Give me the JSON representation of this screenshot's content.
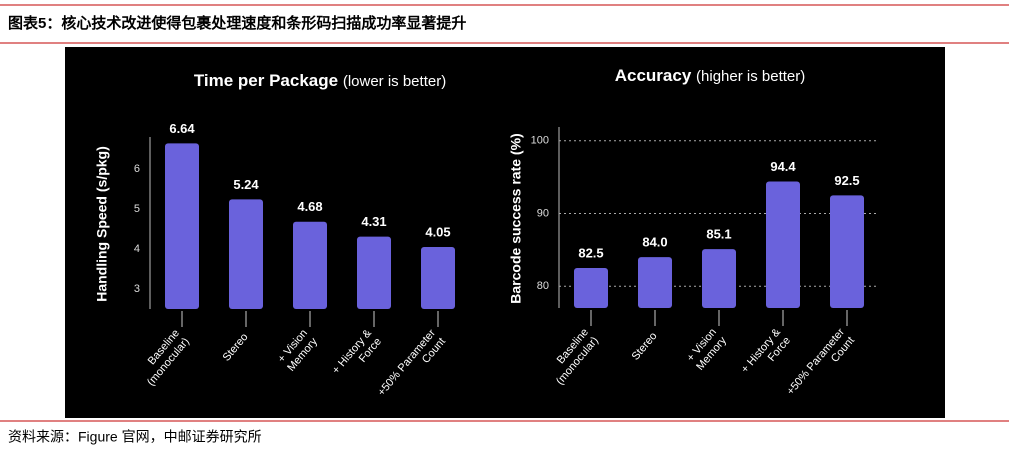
{
  "header": {
    "title": "图表5：核心技术改进使得包裹处理速度和条形码扫描成功率显著提升"
  },
  "source": "资料来源：Figure 官网，中邮证券研究所",
  "chart_data": [
    {
      "type": "bar",
      "title": "Time per Package",
      "subtitle": "(lower is better)",
      "y_label": "Handling Speed (s/pkg)",
      "categories": [
        [
          "Baseline",
          "(monocular)"
        ],
        [
          "Stereo"
        ],
        [
          "+ Vision",
          "Memory"
        ],
        [
          "+ History &",
          "Force"
        ],
        [
          "+50% Parameter",
          "Count"
        ]
      ],
      "values": [
        6.64,
        5.24,
        4.68,
        4.31,
        4.05
      ],
      "color": "#6a62dc",
      "ylim": [
        2.5,
        7
      ],
      "yticks": [
        3,
        4,
        5,
        6
      ],
      "grid": false
    },
    {
      "type": "bar",
      "title": "Accuracy",
      "subtitle": "(higher is better)",
      "y_label": "Barcode success rate (%)",
      "categories": [
        [
          "Baseline",
          "(monocular)"
        ],
        [
          "Stereo"
        ],
        [
          "+ Vision",
          "Memory"
        ],
        [
          "+ History &",
          "Force"
        ],
        [
          "+50% Parameter",
          "Count"
        ]
      ],
      "values": [
        82.5,
        84,
        85.1,
        94.4,
        92.5
      ],
      "value_labels": [
        "82.5",
        "84.0",
        "85.1",
        "94.4",
        "92.5"
      ],
      "color": "#6a62dc",
      "ylim": [
        77,
        103
      ],
      "yticks": [
        80,
        90,
        100
      ],
      "grid": true
    }
  ]
}
